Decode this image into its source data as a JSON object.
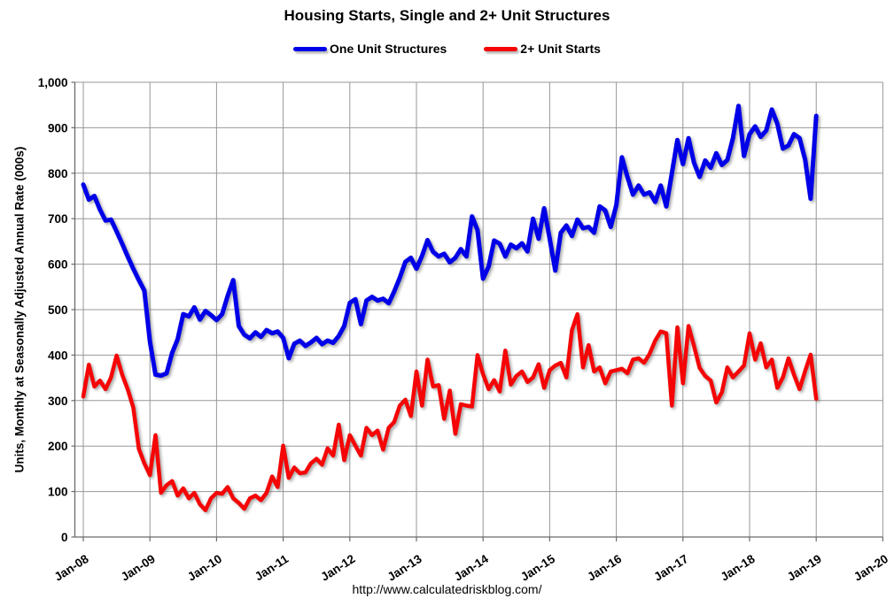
{
  "header": {
    "title": "Housing Starts, Single and 2+ Unit Structures"
  },
  "footer": {
    "url": "http://www.calculatedriskblog.com/"
  },
  "colors": {
    "one_unit": "#0000E8",
    "two_plus": "#F50505",
    "gridline": "#979797",
    "axis": "#6b6b6b",
    "text": "#000000",
    "background": "#ffffff"
  },
  "chart_data": {
    "type": "line",
    "title": "Housing Starts, Single and 2+ Unit Structures",
    "xlabel": "",
    "ylabel": "Units, Monthly at Seasonally Adjusted Annual Rate (000s)",
    "ylim": [
      0,
      1000
    ],
    "y_tick_step": 100,
    "y_tick_labels": [
      "0",
      "100",
      "200",
      "300",
      "400",
      "500",
      "600",
      "700",
      "800",
      "900",
      "1,000"
    ],
    "x_tick_labels": [
      "Jan-08",
      "Jan-09",
      "Jan-10",
      "Jan-11",
      "Jan-12",
      "Jan-13",
      "Jan-14",
      "Jan-15",
      "Jan-16",
      "Jan-17",
      "Jan-18",
      "Jan-19",
      "Jan-20"
    ],
    "grid": true,
    "legend_position": "top-center",
    "x_start_month": "2008-01",
    "x_axis_end_month": "2020-01",
    "frequency": "monthly",
    "series": [
      {
        "name": "One Unit Structures",
        "color": "#0000E8",
        "values": [
          775,
          742,
          750,
          720,
          696,
          698,
          672,
          645,
          617,
          590,
          565,
          542,
          430,
          357,
          355,
          360,
          405,
          435,
          490,
          485,
          505,
          478,
          497,
          488,
          477,
          490,
          530,
          565,
          464,
          445,
          437,
          450,
          440,
          455,
          448,
          452,
          438,
          393,
          425,
          432,
          420,
          428,
          438,
          424,
          432,
          427,
          442,
          464,
          515,
          523,
          468,
          520,
          528,
          520,
          524,
          514,
          540,
          570,
          605,
          614,
          590,
          618,
          653,
          627,
          617,
          623,
          604,
          614,
          633,
          617,
          705,
          675,
          568,
          595,
          652,
          645,
          617,
          643,
          635,
          646,
          628,
          700,
          656,
          723,
          656,
          586,
          669,
          685,
          662,
          698,
          679,
          682,
          669,
          727,
          718,
          682,
          730,
          835,
          792,
          753,
          773,
          753,
          758,
          737,
          773,
          727,
          800,
          873,
          820,
          877,
          823,
          792,
          828,
          812,
          844,
          818,
          829,
          877,
          948,
          838,
          886,
          903,
          880,
          894,
          940,
          909,
          854,
          861,
          886,
          877,
          830,
          744,
          926
        ]
      },
      {
        "name": "2+ Unit Starts",
        "color": "#F50505",
        "values": [
          309,
          379,
          331,
          344,
          325,
          351,
          399,
          357,
          325,
          285,
          194,
          162,
          136,
          224,
          97,
          114,
          123,
          91,
          107,
          85,
          97,
          72,
          59,
          85,
          97,
          95,
          110,
          85,
          75,
          62,
          85,
          91,
          81,
          97,
          133,
          110,
          201,
          130,
          153,
          140,
          142,
          162,
          172,
          159,
          195,
          179,
          247,
          169,
          224,
          201,
          179,
          240,
          224,
          234,
          192,
          240,
          253,
          289,
          302,
          266,
          364,
          289,
          390,
          331,
          334,
          260,
          322,
          227,
          292,
          289,
          287,
          400,
          358,
          325,
          345,
          320,
          410,
          335,
          354,
          364,
          341,
          351,
          380,
          328,
          367,
          377,
          383,
          351,
          455,
          490,
          373,
          422,
          364,
          373,
          338,
          364,
          367,
          370,
          360,
          390,
          393,
          383,
          403,
          432,
          452,
          448,
          289,
          461,
          338,
          464,
          420,
          372,
          354,
          344,
          296,
          318,
          373,
          351,
          364,
          377,
          448,
          390,
          426,
          373,
          390,
          328,
          351,
          393,
          357,
          325,
          365,
          401,
          304
        ]
      }
    ]
  }
}
